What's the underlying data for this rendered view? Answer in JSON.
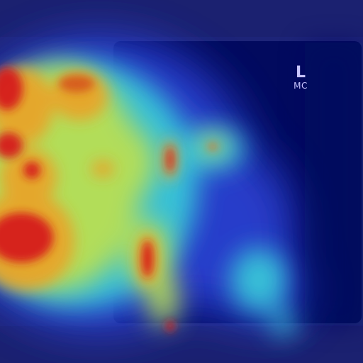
{
  "image": {
    "type": "x-ray heatmap overlay",
    "colors": {
      "background": "#1b2170",
      "plate": "#020a5e",
      "hot": "#d61e1e",
      "warm": "#e7a52b",
      "mid": "#b9df52",
      "cool": "#39c7d8",
      "cold": "#2b3fd0"
    }
  },
  "marker": {
    "letter": "L",
    "sub": "MC"
  }
}
